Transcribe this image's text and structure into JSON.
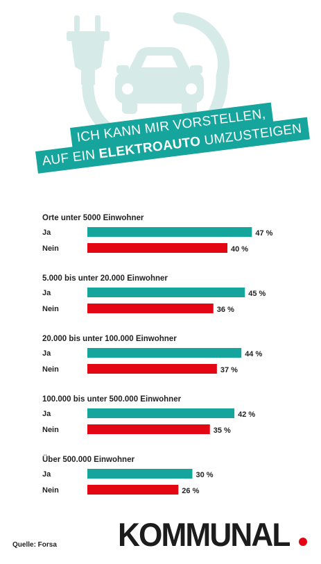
{
  "banner": {
    "line1": "ICH KANN MIR VORSTELLEN,",
    "line2_prefix": "AUF EIN ",
    "line2_bold": "ELEKTROAUTO",
    "line2_suffix": " UMZUSTEIGEN"
  },
  "colors": {
    "ja": "#16a59c",
    "nein": "#e30613",
    "illustration": "#d6eae8"
  },
  "icons": [
    "plug-icon",
    "car-icon"
  ],
  "chart_data": {
    "type": "bar",
    "orientation": "horizontal",
    "unit": "%",
    "series_labels": [
      "Ja",
      "Nein"
    ],
    "groups": [
      {
        "label": "Orte unter 5000 Einwohner",
        "ja": 47,
        "nein": 40
      },
      {
        "label": "5.000 bis unter 20.000 Einwohner",
        "ja": 45,
        "nein": 36
      },
      {
        "label": "20.000 bis unter 100.000 Einwohner",
        "ja": 44,
        "nein": 37
      },
      {
        "label": "100.000 bis unter 500.000 Einwohner",
        "ja": 42,
        "nein": 35
      },
      {
        "label": "Über 500.000 Einwohner",
        "ja": 30,
        "nein": 26
      }
    ],
    "value_labels": {
      "ja": [
        "47 %",
        "45 %",
        "44 %",
        "42 %",
        "30 %"
      ],
      "nein": [
        "40 %",
        "36 %",
        "37 %",
        "35 %",
        "26 %"
      ]
    },
    "grid": false,
    "legend": "none"
  },
  "footer": {
    "source": "Quelle: Forsa",
    "brand": "KOMMUNAL"
  }
}
